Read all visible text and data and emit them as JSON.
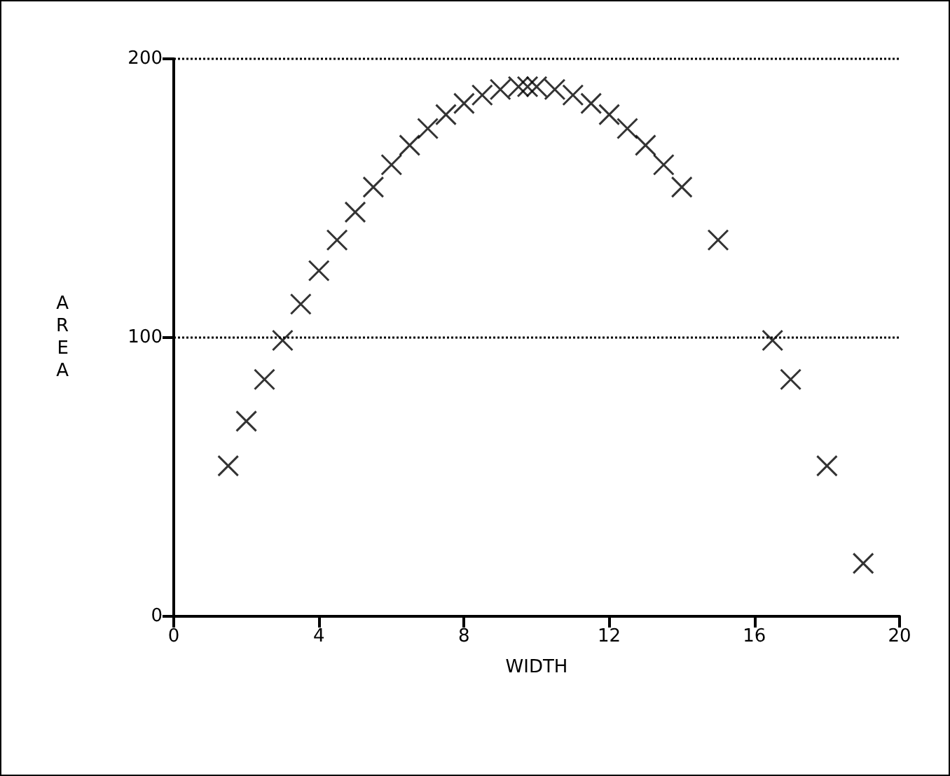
{
  "chart_data": {
    "type": "scatter",
    "xlabel": "WIDTH",
    "ylabel": "AREA",
    "x": [
      1.5,
      2,
      2.5,
      3,
      3.5,
      4,
      4.5,
      5,
      5.5,
      6,
      6.5,
      7,
      7.5,
      8,
      8.5,
      9,
      9.5,
      9.75,
      10,
      10.5,
      11,
      11.5,
      12,
      12.5,
      13,
      13.5,
      14,
      15,
      16.5,
      17,
      18,
      19
    ],
    "values": [
      54,
      70,
      85,
      99,
      112,
      124,
      135,
      145,
      154,
      162,
      169,
      175,
      180,
      184,
      187,
      189,
      190,
      190,
      190,
      189,
      187,
      184,
      180,
      175,
      169,
      162,
      154,
      135,
      99,
      85,
      54,
      19
    ],
    "color": "#000000",
    "marker": "cross",
    "xlim": [
      0,
      20
    ],
    "xticks": [
      0,
      4,
      8,
      12,
      16,
      20
    ],
    "ylim": [
      0,
      200
    ],
    "yticks": [
      0,
      100,
      200
    ],
    "grid": "y"
  }
}
